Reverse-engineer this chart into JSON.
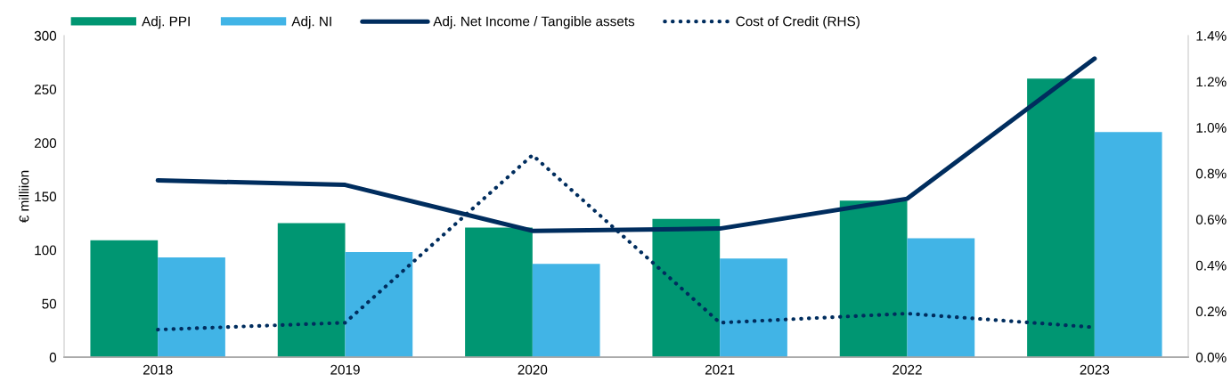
{
  "chart_data": {
    "type": "bar",
    "ylabel": "€ milliion",
    "categories": [
      "2018",
      "2019",
      "2020",
      "2021",
      "2022",
      "2023"
    ],
    "series": [
      {
        "name": "Adj. PPI",
        "color": "#009672",
        "values": [
          109,
          125,
          121,
          129,
          146,
          260
        ]
      },
      {
        "name": "Adj. NI",
        "color": "#41b4e6",
        "values": [
          93,
          98,
          87,
          92,
          111,
          210
        ]
      },
      {
        "name": "Adj. Net Income / Tangible assets",
        "type": "line",
        "axis": "y2",
        "color": "#002d5e",
        "line_style": "solid",
        "values": [
          0.77,
          0.75,
          0.55,
          0.56,
          0.69,
          1.3
        ]
      },
      {
        "name": "Cost of Credit (RHS)",
        "type": "line",
        "axis": "y2",
        "color": "#002d5e",
        "line_style": "dotted",
        "values": [
          0.12,
          0.15,
          0.88,
          0.15,
          0.19,
          0.13
        ]
      }
    ],
    "ylim": [
      0,
      300
    ],
    "yticks": [
      0,
      50,
      100,
      150,
      200,
      250,
      300
    ],
    "y2lim": [
      0,
      1.4
    ],
    "y2ticks": [
      {
        "value": 0,
        "label": "0.0%"
      },
      {
        "value": 0.2,
        "label": "0.2%"
      },
      {
        "value": 0.4,
        "label": "0.4%"
      },
      {
        "value": 0.6,
        "label": "0.6%"
      },
      {
        "value": 0.8,
        "label": "0.8%"
      },
      {
        "value": 1.0,
        "label": "1.0%"
      },
      {
        "value": 1.2,
        "label": "1.2%"
      },
      {
        "value": 1.4,
        "label": "1.4%"
      }
    ],
    "grid": false,
    "legend": "top left"
  }
}
